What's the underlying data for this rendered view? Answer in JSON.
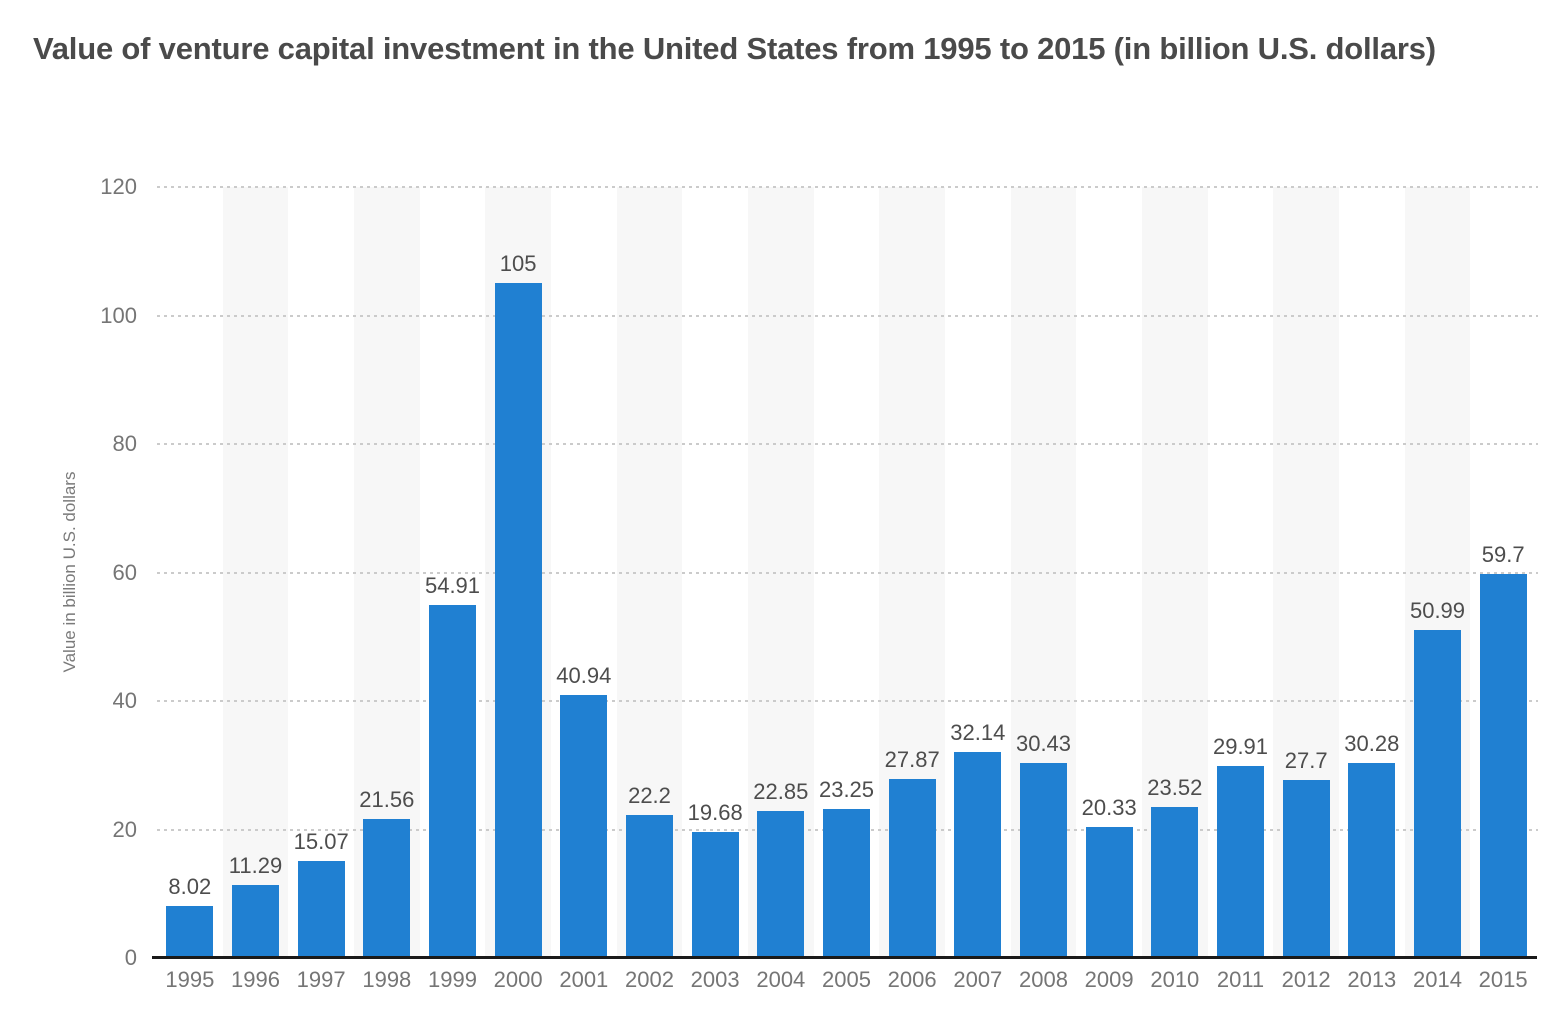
{
  "header": {
    "title": "Value of venture capital investment in the United States from 1995 to 2015 (in billion U.S. dollars)"
  },
  "chart_data": {
    "type": "bar",
    "title": "Value of venture capital investment in the United States from 1995 to 2015 (in billion U.S. dollars)",
    "categories": [
      "1995",
      "1996",
      "1997",
      "1998",
      "1999",
      "2000",
      "2001",
      "2002",
      "2003",
      "2004",
      "2005",
      "2006",
      "2007",
      "2008",
      "2009",
      "2010",
      "2011",
      "2012",
      "2013",
      "2014",
      "2015"
    ],
    "values": [
      8.02,
      11.29,
      15.07,
      21.56,
      54.91,
      105,
      40.94,
      22.2,
      19.68,
      22.85,
      23.25,
      27.87,
      32.14,
      30.43,
      20.33,
      23.52,
      29.91,
      27.7,
      30.28,
      50.99,
      59.7
    ],
    "value_labels": [
      "8.02",
      "11.29",
      "15.07",
      "21.56",
      "54.91",
      "105",
      "40.94",
      "22.2",
      "19.68",
      "22.85",
      "23.25",
      "27.87",
      "32.14",
      "30.43",
      "20.33",
      "23.52",
      "29.91",
      "27.7",
      "30.28",
      "50.99",
      "59.7"
    ],
    "xlabel": "",
    "ylabel": "Value in billion U.S. dollars",
    "ylim": [
      0,
      120
    ],
    "yticks": [
      0,
      20,
      40,
      60,
      80,
      100,
      120
    ],
    "grid": "horizontal-dotted",
    "legend": "none",
    "colors": {
      "bar": "#2080d2",
      "stripe": "#f7f7f7",
      "gridline": "#cbcbcb",
      "baseline": "#1a1a1a",
      "title_text": "#4a4a4a",
      "tick_text": "#757575",
      "axis_title_text": "#7a7a7a",
      "value_label_text": "#4d4d4d",
      "background": "#ffffff"
    }
  }
}
